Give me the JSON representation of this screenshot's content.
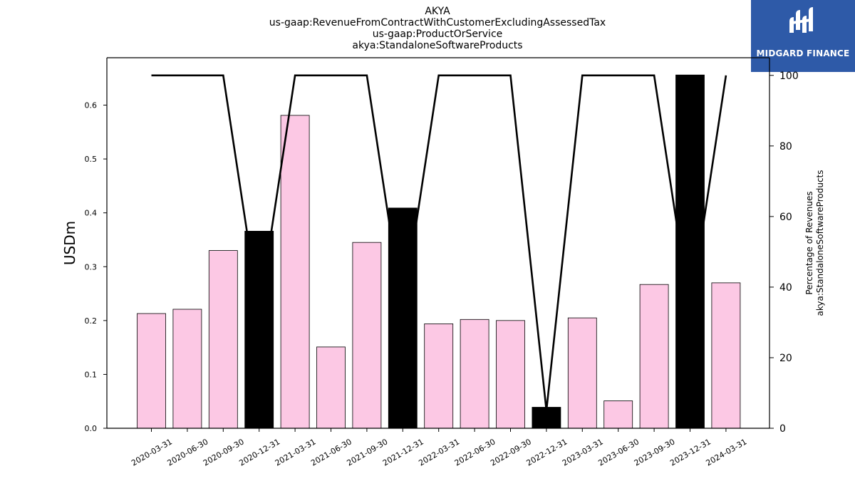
{
  "chart_data": {
    "type": "bar",
    "title_lines": [
      "AKYA",
      "us-gaap:RevenueFromContractWithCustomerExcludingAssessedTax",
      "us-gaap:ProductOrService",
      "akya:StandaloneSoftwareProducts"
    ],
    "categories": [
      "2020-03-31",
      "2020-06-30",
      "2020-09-30",
      "2020-12-31",
      "2021-03-31",
      "2021-06-30",
      "2021-09-30",
      "2021-12-31",
      "2022-03-31",
      "2022-06-30",
      "2022-09-30",
      "2022-12-31",
      "2023-03-31",
      "2023-06-30",
      "2023-09-30",
      "2023-12-31",
      "2024-03-31"
    ],
    "series": [
      {
        "values": [
          0.213,
          0.221,
          0.33,
          0.366,
          0.581,
          0.151,
          0.345,
          0.409,
          0.194,
          0.202,
          0.2,
          0.039,
          0.205,
          0.051,
          0.267,
          0.656,
          0.27
        ],
        "annual": [
          false,
          false,
          false,
          true,
          false,
          false,
          false,
          true,
          false,
          false,
          false,
          true,
          false,
          false,
          false,
          true,
          false
        ],
        "colors": {
          "quarter": "#fcc8e4",
          "annual": "#000000"
        }
      },
      {
        "axis": "right",
        "type": "line",
        "values": [
          100,
          100,
          100,
          33,
          100,
          100,
          100,
          33,
          100,
          100,
          100,
          5,
          100,
          100,
          100,
          33,
          100
        ],
        "color": "#000000"
      }
    ],
    "ylabel": "USDm",
    "ylim": [
      0,
      0.688
    ],
    "yticks": [
      "0.0",
      "0.1",
      "0.2",
      "0.3",
      "0.4",
      "0.5",
      "0.6"
    ],
    "y2label_lines": [
      "Percentage of Revenues",
      "akya:StandaloneSoftwareProducts"
    ],
    "y2lim": [
      0,
      105
    ],
    "y2ticks": [
      "0",
      "20",
      "40",
      "60",
      "80",
      "100"
    ]
  },
  "logo": {
    "text": "MIDGARD FINANCE",
    "color": "#2e5aa8"
  }
}
